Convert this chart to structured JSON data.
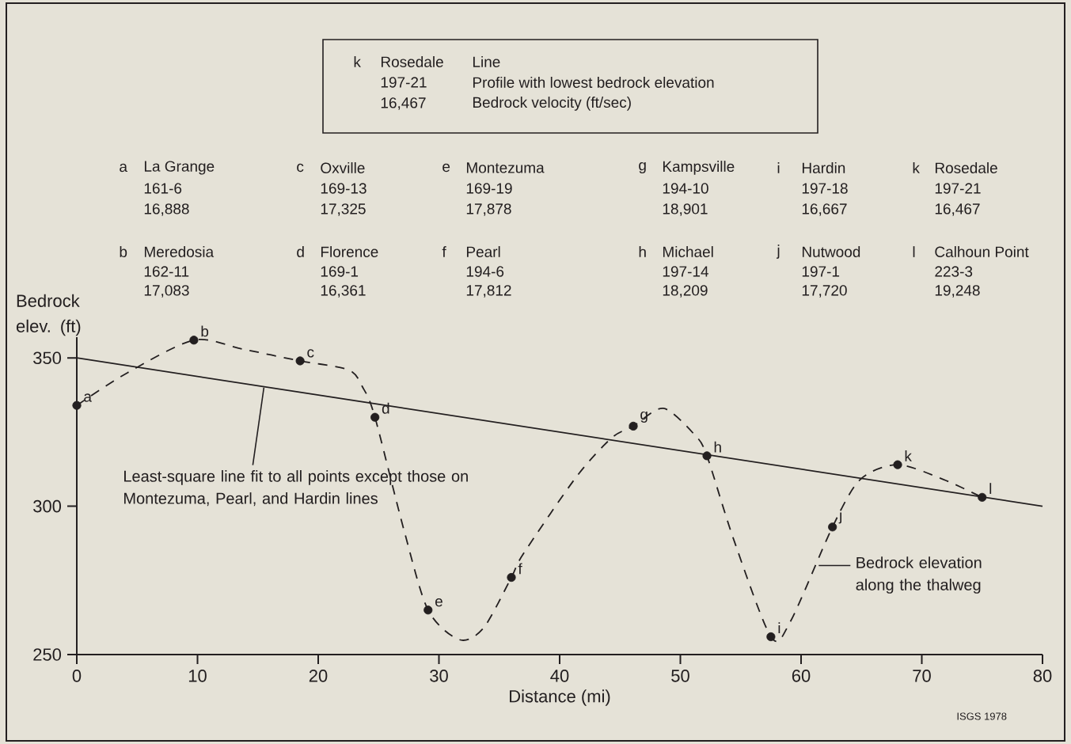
{
  "chart_data": {
    "type": "line",
    "xlabel": "Distance (mi)",
    "ylabel": "Bedrock elev. (ft)",
    "xlim": [
      0,
      80
    ],
    "ylim": [
      250,
      357
    ],
    "xticks": [
      0,
      10,
      20,
      30,
      40,
      50,
      60,
      70,
      80
    ],
    "yticks": [
      250,
      300,
      350
    ],
    "series": [
      {
        "line_style": "dashed",
        "color": "#231f20",
        "x": [
          0,
          4.2,
          9.7,
          13.7,
          18.5,
          22.5,
          23.7,
          24.7,
          27.1,
          29.1,
          31.7,
          33.7,
          36.0,
          37.0,
          41.4,
          44.3,
          46.1,
          48.6,
          51.2,
          52.2,
          54.4,
          57.5,
          59.1,
          62.6,
          64.9,
          68.0,
          71.8,
          75.0
        ],
        "values": [
          334,
          345,
          356,
          353,
          349,
          346,
          340,
          330,
          292,
          265,
          255,
          259,
          276,
          284,
          310,
          323,
          327,
          333,
          324,
          317,
          289,
          256,
          261,
          293,
          309,
          314,
          309,
          303
        ]
      },
      {
        "type": "scatter",
        "marker": "circle",
        "color": "#231f20",
        "x": [
          0,
          9.7,
          18.5,
          24.7,
          29.1,
          36.0,
          46.1,
          52.2,
          57.5,
          62.6,
          68.0,
          75.0
        ],
        "values": [
          334,
          356,
          349,
          330,
          265,
          276,
          327,
          317,
          256,
          293,
          314,
          303
        ]
      },
      {
        "line_style": "solid",
        "color": "#231f20",
        "x": [
          0,
          80
        ],
        "values": [
          350,
          300
        ]
      }
    ],
    "annotations": [
      "k",
      "Rosedale",
      "Line",
      "197-21",
      "Profile with lowest bedrock elevation",
      "16,467",
      "Bedrock velocity (ft/sec)",
      "a",
      "La Grange",
      "161-6",
      "16,888",
      "b",
      "Meredosia",
      "162-11",
      "17,083",
      "c",
      "Oxville",
      "169-13",
      "17,325",
      "d",
      "Florence",
      "169-1",
      "16,361",
      "e",
      "Montezuma",
      "169-19",
      "17,878",
      "f",
      "Pearl",
      "194-6",
      "17,812",
      "g",
      "Kampsville",
      "194-10",
      "18,901",
      "h",
      "Michael",
      "197-14",
      "18,209",
      "i",
      "Hardin",
      "197-18",
      "16,667",
      "j",
      "Nutwood",
      "197-1",
      "17,720",
      "k",
      "Rosedale",
      "197-21",
      "16,467",
      "l",
      "Calhoun Point",
      "223-3",
      "19,248",
      "ISGS 1978",
      {
        "text": "a",
        "x": 0,
        "y": 334
      },
      {
        "text": "b",
        "x": 9.7,
        "y": 356
      },
      {
        "text": "c",
        "x": 18.5,
        "y": 349
      },
      {
        "text": "d",
        "x": 24.7,
        "y": 330
      },
      {
        "text": "e",
        "x": 29.1,
        "y": 265
      },
      {
        "text": "f",
        "x": 36.0,
        "y": 276
      },
      {
        "text": "g",
        "x": 46.1,
        "y": 327
      },
      {
        "text": "h",
        "x": 52.2,
        "y": 317
      },
      {
        "text": "i",
        "x": 57.5,
        "y": 256
      },
      {
        "text": "j",
        "x": 62.6,
        "y": 293
      },
      {
        "text": "k",
        "x": 68.0,
        "y": 314
      },
      {
        "text": "l",
        "x": 75.0,
        "y": 303
      },
      {
        "text": "Least-square line fit to all points except those on Montezuma, Pearl, and Hardin lines",
        "x": 15.5,
        "y": 340
      },
      {
        "text": "Bedrock elevation along the thalweg",
        "x": 61.2,
        "y": 280
      }
    ]
  }
}
